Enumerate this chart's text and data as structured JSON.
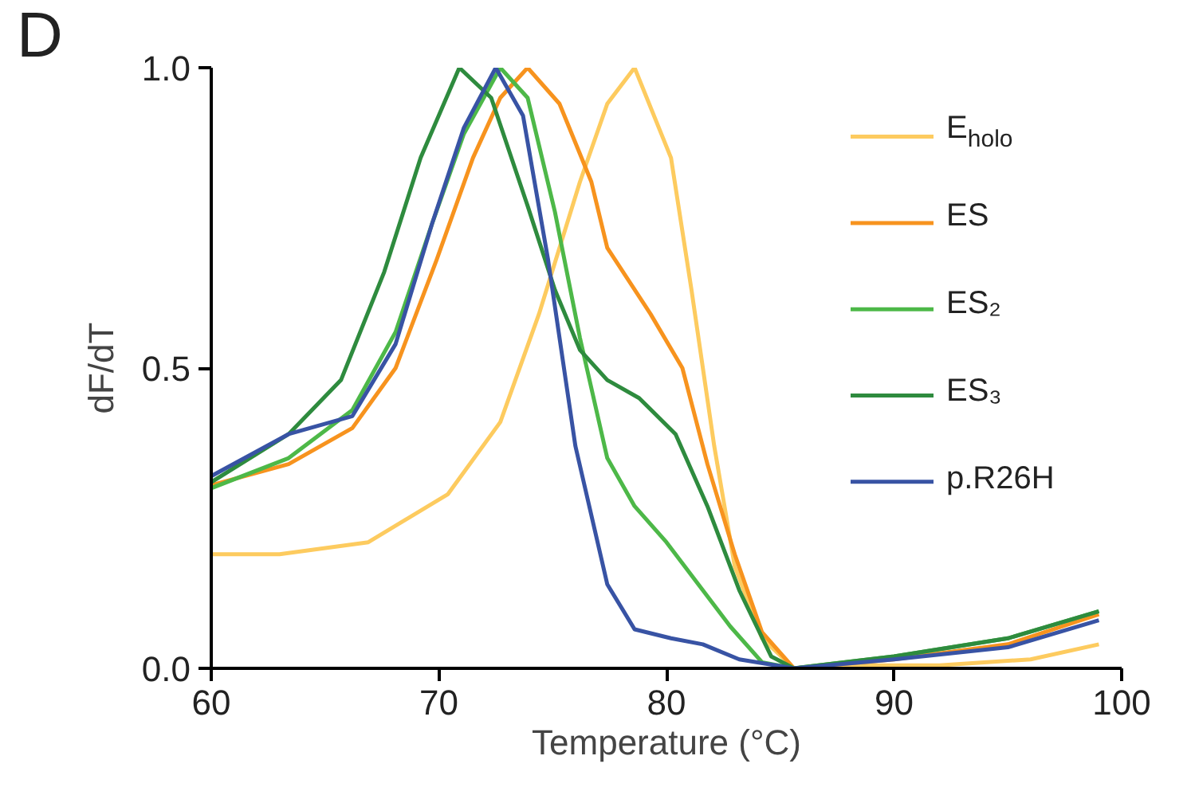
{
  "chart_data": {
    "type": "line",
    "xlabel": "Temperature (°C)",
    "ylabel": "dF/dT",
    "annotations": [
      "D"
    ],
    "xlim": [
      60,
      100
    ],
    "ylim": [
      0,
      1.0
    ],
    "xticks": [
      60,
      70,
      80,
      90,
      100
    ],
    "yticks": [
      {
        "value": 0,
        "label": "0.0"
      },
      {
        "value": 0.5,
        "label": "0.5"
      },
      {
        "value": 1.0,
        "label": "1.0"
      }
    ],
    "grid": false,
    "legend": "top right",
    "marker": "none",
    "line_style": "solid",
    "series": [
      {
        "name": "E$_{holo}$",
        "color": "#fdcb5f",
        "x": [
          60,
          63,
          66.9,
          70.4,
          72.7,
          74.4,
          76.2,
          77.4,
          78.6,
          80.2,
          81.1,
          82.1,
          83.0,
          84.2,
          85.6,
          88,
          92,
          96,
          99
        ],
        "values": [
          0.19,
          0.19,
          0.21,
          0.29,
          0.41,
          0.59,
          0.81,
          0.94,
          1.0,
          0.85,
          0.63,
          0.37,
          0.17,
          0.05,
          0.0,
          0.005,
          0.005,
          0.015,
          0.04
        ]
      },
      {
        "name": "ES",
        "color": "#f7931e",
        "x": [
          60,
          63.4,
          66.2,
          68.1,
          69.9,
          71.5,
          72.7,
          73.9,
          75.3,
          76.7,
          77.4,
          79.3,
          80.7,
          81.8,
          83.0,
          84.2,
          85.6,
          90,
          95,
          99
        ],
        "values": [
          0.305,
          0.34,
          0.4,
          0.5,
          0.68,
          0.85,
          0.95,
          1.0,
          0.94,
          0.81,
          0.7,
          0.59,
          0.5,
          0.34,
          0.19,
          0.06,
          0.0,
          0.015,
          0.04,
          0.09
        ]
      },
      {
        "name": "ES₂",
        "color": "#4db848",
        "x": [
          60,
          63.4,
          66.2,
          68.1,
          69.7,
          71.1,
          72.7,
          73.9,
          75.1,
          76.2,
          77.4,
          78.6,
          80.0,
          81.4,
          82.8,
          84.2,
          85.6,
          90,
          95,
          99
        ],
        "values": [
          0.3,
          0.35,
          0.43,
          0.56,
          0.74,
          0.89,
          1.0,
          0.95,
          0.76,
          0.55,
          0.35,
          0.27,
          0.21,
          0.14,
          0.07,
          0.01,
          0.0,
          0.02,
          0.05,
          0.095
        ]
      },
      {
        "name": "ES₃",
        "color": "#2e8b3e",
        "x": [
          60,
          63.4,
          65.7,
          67.6,
          69.2,
          70.9,
          72.3,
          73.9,
          75.1,
          76.2,
          77.4,
          78.8,
          80.4,
          81.8,
          83.2,
          84.6,
          85.6,
          90,
          95,
          99
        ],
        "values": [
          0.31,
          0.39,
          0.48,
          0.66,
          0.85,
          1.0,
          0.95,
          0.77,
          0.63,
          0.53,
          0.48,
          0.45,
          0.39,
          0.27,
          0.13,
          0.02,
          0.0,
          0.02,
          0.05,
          0.095
        ]
      },
      {
        "name": "p.R26H",
        "color": "#3853a4",
        "x": [
          60,
          63.4,
          66.2,
          68.1,
          69.7,
          71.1,
          72.5,
          73.7,
          74.8,
          76.0,
          77.4,
          78.6,
          80.2,
          81.6,
          83.2,
          85.6,
          90,
          95,
          99
        ],
        "values": [
          0.32,
          0.39,
          0.42,
          0.54,
          0.74,
          0.9,
          1.0,
          0.92,
          0.68,
          0.37,
          0.14,
          0.065,
          0.05,
          0.04,
          0.015,
          0.0,
          0.015,
          0.035,
          0.08
        ]
      }
    ]
  }
}
